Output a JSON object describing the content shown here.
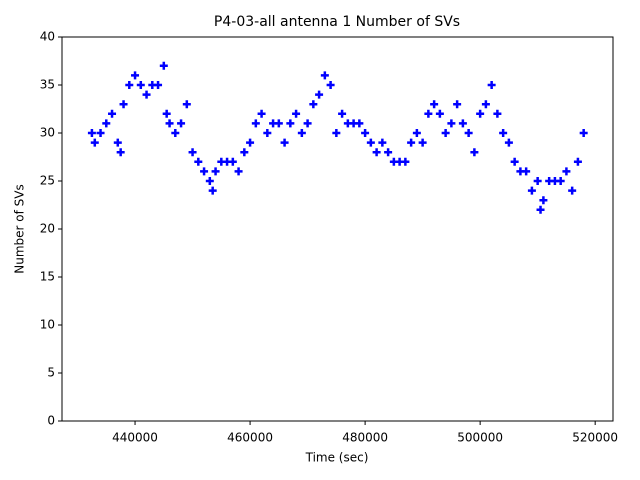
{
  "chart_data": {
    "type": "scatter",
    "title": "P4-03-all antenna 1 Number of SVs",
    "x_label": "Time (sec)",
    "y_label": "Number of SVs",
    "series": [
      {
        "color": "#0000ff",
        "x": [
          432500,
          433000,
          434000,
          435000,
          436000,
          437000,
          437500,
          438000,
          439000,
          440000,
          441000,
          442000,
          443000,
          444000,
          445000,
          445500,
          446000,
          447000,
          448000,
          449000,
          450000,
          451000,
          452000,
          453000,
          453500,
          454000,
          455000,
          456000,
          457000,
          458000,
          459000,
          460000,
          461000,
          462000,
          463000,
          464000,
          465000,
          466000,
          467000,
          468000,
          469000,
          470000,
          471000,
          472000,
          473000,
          474000,
          475000,
          476000,
          477000,
          478000,
          479000,
          480000,
          481000,
          482000,
          483000,
          484000,
          485000,
          486000,
          487000,
          488000,
          489000,
          490000,
          491000,
          492000,
          493000,
          494000,
          495000,
          496000,
          497000,
          498000,
          499000,
          500000,
          501000,
          502000,
          503000,
          504000,
          505000,
          506000,
          507000,
          508000,
          509000,
          510000,
          510500,
          511000,
          512000,
          513000,
          514000,
          515000,
          516000,
          517000,
          518000
        ],
        "values": [
          30,
          29,
          30,
          31,
          32,
          29,
          28,
          33,
          35,
          36,
          35,
          34,
          35,
          35,
          37,
          32,
          31,
          30,
          31,
          33,
          28,
          27,
          26,
          25,
          24,
          26,
          27,
          27,
          27,
          26,
          28,
          29,
          31,
          32,
          30,
          31,
          31,
          29,
          31,
          32,
          30,
          31,
          33,
          34,
          36,
          35,
          30,
          32,
          31,
          31,
          31,
          30,
          29,
          28,
          29,
          28,
          27,
          27,
          27,
          29,
          30,
          29,
          32,
          33,
          32,
          30,
          31,
          33,
          31,
          30,
          28,
          32,
          33,
          35,
          32,
          30,
          29,
          27,
          26,
          26,
          24,
          25,
          22,
          23,
          25,
          25,
          25,
          26,
          24,
          27,
          30
        ]
      }
    ],
    "xlim": [
      427300,
      523100
    ],
    "ylim": [
      0,
      40
    ],
    "xticks": [
      440000,
      460000,
      480000,
      500000,
      520000
    ],
    "yticks": [
      0,
      5,
      10,
      15,
      20,
      25,
      30,
      35,
      40
    ]
  }
}
